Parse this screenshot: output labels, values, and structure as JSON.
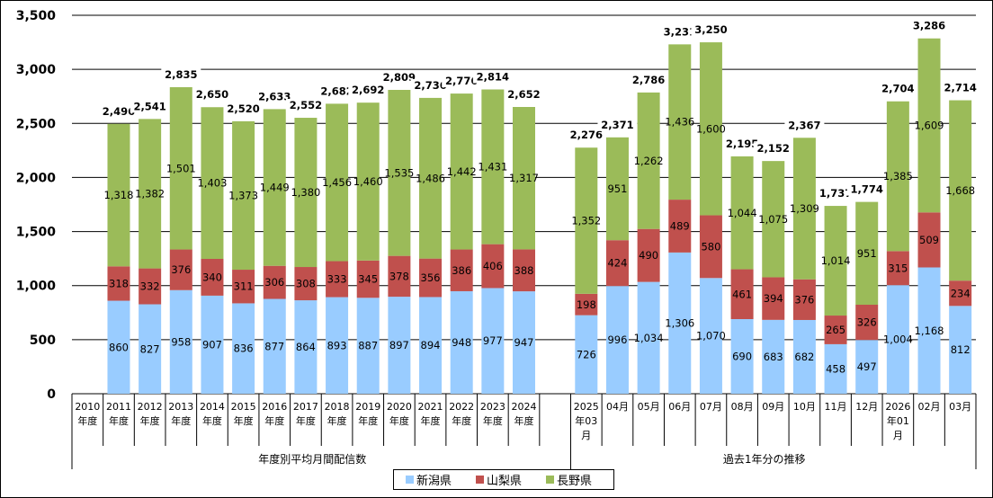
{
  "chart_data": {
    "type": "bar",
    "stacked": true,
    "title": "",
    "xlabel": "",
    "ylabel": "",
    "ylim": [
      0,
      3500
    ],
    "yticks": [
      0,
      500,
      1000,
      1500,
      2000,
      2500,
      3000,
      3500
    ],
    "ytick_labels": [
      "0",
      "500",
      "1,000",
      "1,500",
      "2,000",
      "2,500",
      "3,000",
      "3,500"
    ],
    "grid": true,
    "legend_position": "bottom",
    "categories": [
      [
        "2010",
        "年度"
      ],
      [
        "2011",
        "年度"
      ],
      [
        "2012",
        "年度"
      ],
      [
        "2013",
        "年度"
      ],
      [
        "2014",
        "年度"
      ],
      [
        "2015",
        "年度"
      ],
      [
        "2016",
        "年度"
      ],
      [
        "2017",
        "年度"
      ],
      [
        "2018",
        "年度"
      ],
      [
        "2019",
        "年度"
      ],
      [
        "2020",
        "年度"
      ],
      [
        "2021",
        "年度"
      ],
      [
        "2022",
        "年度"
      ],
      [
        "2023",
        "年度"
      ],
      [
        "2024",
        "年度"
      ],
      [],
      [
        "2025",
        "年03",
        "月"
      ],
      [
        "04月"
      ],
      [
        "05月"
      ],
      [
        "06月"
      ],
      [
        "07月"
      ],
      [
        "08月"
      ],
      [
        "09月"
      ],
      [
        "10月"
      ],
      [
        "11月"
      ],
      [
        "12月"
      ],
      [
        "2026",
        "年01",
        "月"
      ],
      [
        "02月"
      ],
      [
        "03月"
      ]
    ],
    "groups": [
      {
        "label": "年度別平均月間配信数",
        "from": 0,
        "to": 15
      },
      {
        "label": "過去1年分の推移",
        "from": 16,
        "to": 28
      }
    ],
    "series": [
      {
        "name": "新潟県",
        "color": "#99ccff",
        "values": [
          null,
          860,
          827,
          958,
          907,
          836,
          877,
          864,
          893,
          887,
          897,
          894,
          948,
          977,
          947,
          null,
          726,
          996,
          1034,
          1306,
          1070,
          690,
          683,
          682,
          458,
          497,
          1004,
          1168,
          812
        ]
      },
      {
        "name": "山梨県",
        "color": "#c0504d",
        "values": [
          null,
          318,
          332,
          376,
          340,
          311,
          306,
          308,
          333,
          345,
          378,
          356,
          386,
          406,
          388,
          null,
          198,
          424,
          490,
          489,
          580,
          461,
          394,
          376,
          265,
          326,
          315,
          509,
          234
        ]
      },
      {
        "name": "長野県",
        "color": "#9bbb59",
        "values": [
          null,
          1318,
          1382,
          1501,
          1403,
          1373,
          1449,
          1380,
          1456,
          1460,
          1535,
          1486,
          1442,
          1431,
          1317,
          null,
          1352,
          951,
          1262,
          1436,
          1600,
          1044,
          1075,
          1309,
          1014,
          951,
          1385,
          1609,
          1668
        ]
      }
    ],
    "totals": [
      null,
      2496,
      2541,
      2835,
      2650,
      2520,
      2633,
      2552,
      2682,
      2692,
      2809,
      2736,
      2776,
      2814,
      2652,
      null,
      2276,
      2371,
      2786,
      3231,
      3250,
      2195,
      2152,
      2367,
      1737,
      1774,
      2704,
      3286,
      2714
    ]
  }
}
